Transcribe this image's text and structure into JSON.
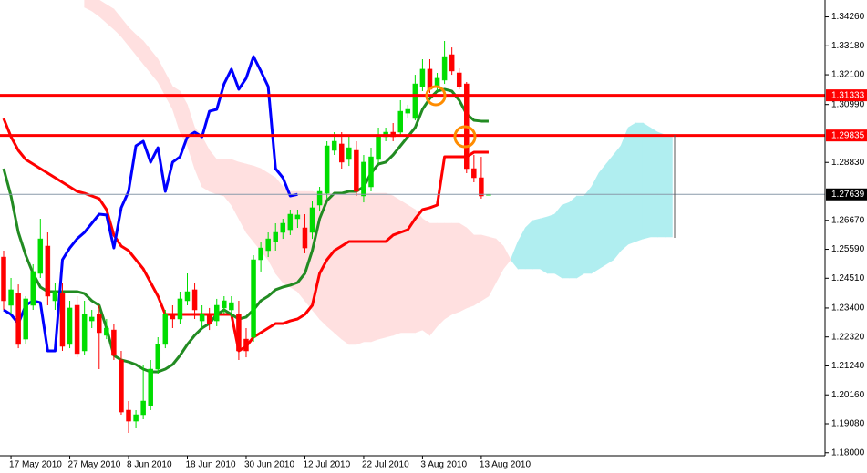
{
  "chart_data": {
    "type": "candlestick",
    "categories": [
      null,
      "17 May 2010",
      null,
      null,
      null,
      null,
      null,
      null,
      null,
      "27 May 2010",
      null,
      null,
      null,
      null,
      null,
      null,
      null,
      "8 Jun 2010",
      null,
      null,
      null,
      null,
      null,
      null,
      null,
      "18 Jun 2010",
      null,
      null,
      null,
      null,
      null,
      null,
      null,
      "30 Jun 2010",
      null,
      null,
      null,
      null,
      null,
      null,
      null,
      "12 Jul 2010",
      null,
      null,
      null,
      null,
      null,
      null,
      null,
      "22 Jul 2010",
      null,
      null,
      null,
      null,
      null,
      null,
      null,
      "3 Aug 2010",
      null,
      null,
      null,
      null,
      null,
      null,
      null,
      "13 Aug 2010",
      null,
      null,
      null,
      null,
      null,
      null,
      null,
      null,
      null,
      null,
      null,
      null,
      null,
      null,
      null,
      null,
      null,
      null,
      null,
      null,
      null,
      null,
      null,
      null,
      null,
      null
    ],
    "open": [
      1.253,
      1.235,
      1.2394,
      1.2224,
      1.235,
      1.2469,
      1.2571,
      1.2367,
      1.2394,
      1.2204,
      1.235,
      1.218,
      1.2292,
      1.2316,
      1.2238,
      1.2258,
      1.2146,
      1.1959,
      1.1918,
      1.1942,
      1.1976,
      1.2112,
      1.2204,
      1.2316,
      1.2299,
      1.2367,
      1.2408,
      1.2292,
      1.2316,
      1.2292,
      1.234,
      1.2333,
      1.2316,
      1.2224,
      1.2231,
      1.252,
      1.2554,
      1.2588,
      1.2622,
      1.2632,
      1.2673,
      1.2639,
      1.2622,
      1.2724,
      1.2768,
      1.2928,
      1.2952,
      1.2894,
      1.2928,
      1.2758,
      1.2792,
      1.2894,
      1.2979,
      1.2996,
      1.2996,
      1.3067,
      1.3047,
      1.3166,
      1.3231,
      1.3166,
      1.319,
      1.3285,
      1.3217,
      1.3176,
      1.286,
      1.2826,
      1.2764,
      null,
      null,
      null,
      null,
      null,
      null,
      null,
      null,
      null,
      null,
      null,
      null,
      null,
      null,
      null,
      null,
      null,
      null,
      null,
      null,
      null,
      null,
      null,
      null,
      null
    ],
    "high": [
      1.2554,
      1.2452,
      1.2428,
      1.2384,
      1.2503,
      1.2673,
      1.2622,
      1.2435,
      1.2435,
      1.2367,
      1.2384,
      1.2367,
      1.2333,
      1.235,
      1.2299,
      1.2282,
      1.218,
      1.1993,
      1.1959,
      1.2129,
      1.2146,
      1.2231,
      1.2333,
      1.235,
      1.2401,
      1.2469,
      1.2435,
      1.235,
      1.234,
      1.2374,
      1.2384,
      1.2384,
      1.2367,
      1.2265,
      1.2537,
      1.2588,
      1.2622,
      1.2656,
      1.2673,
      1.2707,
      1.2707,
      1.269,
      1.2741,
      1.2792,
      1.2962,
      1.2996,
      1.2996,
      1.2979,
      1.2962,
      1.2911,
      1.2938,
      1.3013,
      1.3013,
      1.303,
      1.3115,
      1.3098,
      1.321,
      1.3268,
      1.3268,
      1.3217,
      1.3336,
      1.3312,
      1.3234,
      1.3183,
      1.2911,
      1.2904,
      1.2765,
      null,
      null,
      null,
      null,
      null,
      null,
      null,
      null,
      null,
      null,
      null,
      null,
      null,
      null,
      null,
      null,
      null,
      null,
      null,
      null,
      null,
      null,
      null,
      null,
      null
    ],
    "low": [
      1.2333,
      1.2316,
      1.219,
      1.2204,
      1.2333,
      1.2452,
      1.235,
      1.2333,
      1.218,
      1.219,
      1.2156,
      1.2163,
      1.2265,
      1.2112,
      1.2224,
      1.2146,
      1.1942,
      1.1874,
      1.1891,
      1.1925,
      1.1959,
      1.2095,
      1.219,
      1.2265,
      1.2282,
      1.235,
      1.2299,
      1.2265,
      1.2258,
      1.2272,
      1.2316,
      1.2306,
      1.2146,
      1.2156,
      1.2214,
      1.2476,
      1.253,
      1.2554,
      1.2598,
      1.2612,
      1.2639,
      1.2544,
      1.2598,
      1.27,
      1.2748,
      1.2911,
      1.286,
      1.287,
      1.2758,
      1.2734,
      1.2775,
      1.2877,
      1.2962,
      1.2962,
      1.2979,
      1.3047,
      1.304,
      1.3149,
      1.3142,
      1.3149,
      1.3176,
      1.321,
      1.3156,
      1.2843,
      1.2809,
      1.2748,
      1.2762,
      null,
      null,
      null,
      null,
      null,
      null,
      null,
      null,
      null,
      null,
      null,
      null,
      null,
      null,
      null,
      null,
      null,
      null,
      null,
      null,
      null,
      null,
      null,
      null,
      null
    ],
    "close": [
      1.2367,
      1.2408,
      1.2204,
      1.2374,
      1.2476,
      1.2598,
      1.2384,
      1.2401,
      1.2197,
      1.234,
      1.217,
      1.2316,
      1.2306,
      1.2248,
      1.2265,
      1.2163,
      1.1952,
      1.1918,
      1.1942,
      1.1993,
      1.2112,
      1.2204,
      1.2316,
      1.2299,
      1.2374,
      1.2401,
      1.2333,
      1.2316,
      1.2282,
      1.235,
      1.2367,
      1.236,
      1.218,
      1.218,
      1.252,
      1.2564,
      1.2598,
      1.2622,
      1.2656,
      1.269,
      1.2687,
      1.2564,
      1.2714,
      1.2775,
      1.2945,
      1.2962,
      1.2884,
      1.2938,
      1.2775,
      1.2884,
      1.2904,
      1.2979,
      1.2996,
      1.2979,
      1.3074,
      1.3081,
      1.3176,
      1.3231,
      1.3156,
      1.3197,
      1.3278,
      1.3224,
      1.3166,
      1.286,
      1.2826,
      1.2758,
      1.2764,
      null,
      null,
      null,
      null,
      null,
      null,
      null,
      null,
      null,
      null,
      null,
      null,
      null,
      null,
      null,
      null,
      null,
      null,
      null,
      null,
      null,
      null,
      null,
      null,
      null
    ],
    "up_color": "#00dd00",
    "down_color": "#ff0000",
    "series": [
      {
        "color": "#ff0000",
        "values": [
          1.3047,
          1.2979,
          1.2928,
          1.2894,
          1.2877,
          1.286,
          1.2843,
          1.2826,
          1.2809,
          1.2792,
          1.2775,
          1.2768,
          1.2758,
          1.2748,
          1.2707,
          1.2612,
          1.2571,
          1.2554,
          1.252,
          1.2486,
          1.2435,
          1.2384,
          1.2316,
          1.2316,
          1.2316,
          1.2316,
          1.2316,
          1.2316,
          1.2316,
          1.2316,
          1.2316,
          1.2316,
          1.218,
          1.2197,
          1.2231,
          1.2248,
          1.2265,
          1.2282,
          1.2282,
          1.2292,
          1.2299,
          1.2316,
          1.235,
          1.2469,
          1.252,
          1.2554,
          1.2571,
          1.2588,
          1.2588,
          1.2588,
          1.2588,
          1.2588,
          1.2588,
          1.2612,
          1.2622,
          1.2632,
          1.2673,
          1.2707,
          1.2714,
          1.2724,
          1.2904,
          1.2904,
          1.2904,
          1.2904,
          1.2921,
          1.2921,
          1.2921,
          null,
          null,
          null,
          null,
          null,
          null,
          null,
          null,
          null,
          null,
          null,
          null,
          null,
          null,
          null,
          null,
          null,
          null,
          null,
          null,
          null,
          null,
          null,
          null,
          null
        ]
      },
      {
        "color": "#228b22",
        "values": [
          1.286,
          1.2758,
          1.2622,
          1.2537,
          1.2469,
          1.2418,
          1.2401,
          1.2401,
          1.2401,
          1.2401,
          1.2401,
          1.2394,
          1.2367,
          1.235,
          1.2265,
          1.2163,
          1.2146,
          1.2139,
          1.2129,
          1.2112,
          1.2102,
          1.2102,
          1.2112,
          1.2129,
          1.2163,
          1.2204,
          1.2238,
          1.2265,
          1.2282,
          1.2316,
          1.2333,
          1.2316,
          1.2299,
          1.2306,
          1.2333,
          1.2367,
          1.2384,
          1.2408,
          1.2418,
          1.2425,
          1.2435,
          1.2469,
          1.2554,
          1.2673,
          1.2741,
          1.2768,
          1.2768,
          1.2775,
          1.2775,
          1.2792,
          1.2843,
          1.2877,
          1.2884,
          1.2911,
          1.2945,
          1.2979,
          1.3013,
          1.3081,
          1.3122,
          1.3149,
          1.3156,
          1.3149,
          1.3115,
          1.3064,
          1.304,
          1.3037,
          1.3037,
          null,
          null,
          null,
          null,
          null,
          null,
          null,
          null,
          null,
          null,
          null,
          null,
          null,
          null,
          null,
          null,
          null,
          null,
          null,
          null,
          null,
          null,
          null,
          null,
          null
        ]
      },
      {
        "color": "#0000ff",
        "values": [
          1.2333,
          1.2316,
          1.2282,
          1.235,
          1.2367,
          1.236,
          1.218,
          1.218,
          1.252,
          1.2564,
          1.2598,
          1.2622,
          1.2656,
          1.269,
          1.2687,
          1.2564,
          1.2714,
          1.2775,
          1.2945,
          1.2962,
          1.2884,
          1.2938,
          1.2775,
          1.2884,
          1.2904,
          1.2979,
          1.2996,
          1.2979,
          1.3074,
          1.3081,
          1.3176,
          1.3231,
          1.3156,
          1.3197,
          1.3278,
          1.3224,
          1.3166,
          1.286,
          1.2826,
          1.2758,
          1.2764,
          null,
          null,
          null,
          null,
          null,
          null,
          null,
          null,
          null,
          null,
          null,
          null,
          null,
          null,
          null,
          null,
          null,
          null,
          null,
          null,
          null,
          null,
          null,
          null,
          null,
          null,
          null,
          null,
          null,
          null,
          null,
          null,
          null,
          null,
          null,
          null,
          null,
          null,
          null,
          null,
          null,
          null,
          null,
          null,
          null,
          null,
          null,
          null,
          null,
          null,
          null
        ]
      }
    ],
    "cloud": {
      "bull_color": "#b0eef0",
      "bear_color": "#ffe0e0",
      "span_a": [
        null,
        null,
        null,
        null,
        null,
        null,
        null,
        null,
        null,
        null,
        null,
        1.3462,
        1.3448,
        1.3428,
        1.3404,
        1.338,
        1.3353,
        1.3319,
        1.3285,
        1.3251,
        1.3217,
        1.3183,
        1.3132,
        1.3081,
        1.2996,
        1.2945,
        1.286,
        1.2792,
        1.2775,
        1.2765,
        1.2758,
        1.2724,
        1.2673,
        1.2622,
        1.2588,
        1.2554,
        1.252,
        1.2469,
        1.2435,
        1.2418,
        1.2401,
        1.2367,
        1.2333,
        1.2299,
        1.2272,
        1.2248,
        1.2224,
        1.2204,
        1.2204,
        1.2214,
        1.2214,
        1.2224,
        1.2231,
        1.2238,
        1.2248,
        1.2248,
        1.2248,
        1.2258,
        1.2238,
        1.2272,
        1.2299,
        1.2316,
        1.2326,
        1.234,
        1.235,
        1.2367,
        1.2384,
        1.2435,
        1.2486,
        1.252,
        1.2588,
        1.2639,
        1.2666,
        1.2673,
        1.268,
        1.269,
        1.2724,
        1.2734,
        1.2758,
        1.2758,
        1.2792,
        1.2843,
        1.2877,
        1.2911,
        1.2945,
        1.3013,
        1.303,
        1.303,
        1.3013,
        1.2996,
        1.2986,
        1.2986
      ],
      "span_b": [
        null,
        null,
        null,
        null,
        null,
        null,
        null,
        null,
        null,
        null,
        null,
        1.3523,
        1.3506,
        1.3489,
        1.3472,
        1.3455,
        1.3421,
        1.3387,
        1.336,
        1.3336,
        1.3302,
        1.3268,
        1.3217,
        1.3166,
        1.3149,
        1.3098,
        1.3013,
        1.2979,
        1.2928,
        1.2894,
        1.2894,
        1.2894,
        1.2884,
        1.2877,
        1.287,
        1.286,
        1.2843,
        1.2826,
        1.2792,
        1.2775,
        1.2775,
        1.2775,
        1.2775,
        1.2768,
        1.2768,
        1.2768,
        1.2768,
        1.2768,
        1.2768,
        1.2768,
        1.2768,
        1.2768,
        1.2768,
        1.2758,
        1.2741,
        1.2724,
        1.2707,
        1.2673,
        1.2656,
        1.2656,
        1.2656,
        1.2656,
        1.2656,
        1.2639,
        1.2612,
        1.2612,
        1.2605,
        1.2598,
        1.2571,
        1.252,
        1.2486,
        1.2486,
        1.2486,
        1.2486,
        1.2469,
        1.2469,
        1.2452,
        1.2452,
        1.2452,
        1.2469,
        1.2469,
        1.2486,
        1.2503,
        1.252,
        1.2554,
        1.2578,
        1.2588,
        1.2598,
        1.2605,
        1.2605,
        1.2605,
        1.2605
      ]
    },
    "levels": [
      1.31333,
      1.29835
    ],
    "level_color": "#ff0000",
    "last_price": 1.27639,
    "last_price_color": "#8a9aaa",
    "ylim": [
      1.1789,
      1.3489
    ],
    "yticks": [
      {
        "value": 1.3426,
        "label": "1.34260"
      },
      {
        "value": 1.3318,
        "label": "1.33180"
      },
      {
        "value": 1.321,
        "label": "1.32100"
      },
      {
        "value": 1.3099,
        "label": "1.30990"
      },
      {
        "value": 1.2883,
        "label": "1.28830"
      },
      {
        "value": 1.2667,
        "label": "1.26670"
      },
      {
        "value": 1.2559,
        "label": "1.25590"
      },
      {
        "value": 1.2451,
        "label": "1.24510"
      },
      {
        "value": 1.234,
        "label": "1.23400"
      },
      {
        "value": 1.2232,
        "label": "1.22320"
      },
      {
        "value": 1.2124,
        "label": "1.21240"
      },
      {
        "value": 1.2016,
        "label": "1.20160"
      },
      {
        "value": 1.1908,
        "label": "1.19080"
      },
      {
        "value": 1.18,
        "label": "1.18000"
      }
    ]
  }
}
